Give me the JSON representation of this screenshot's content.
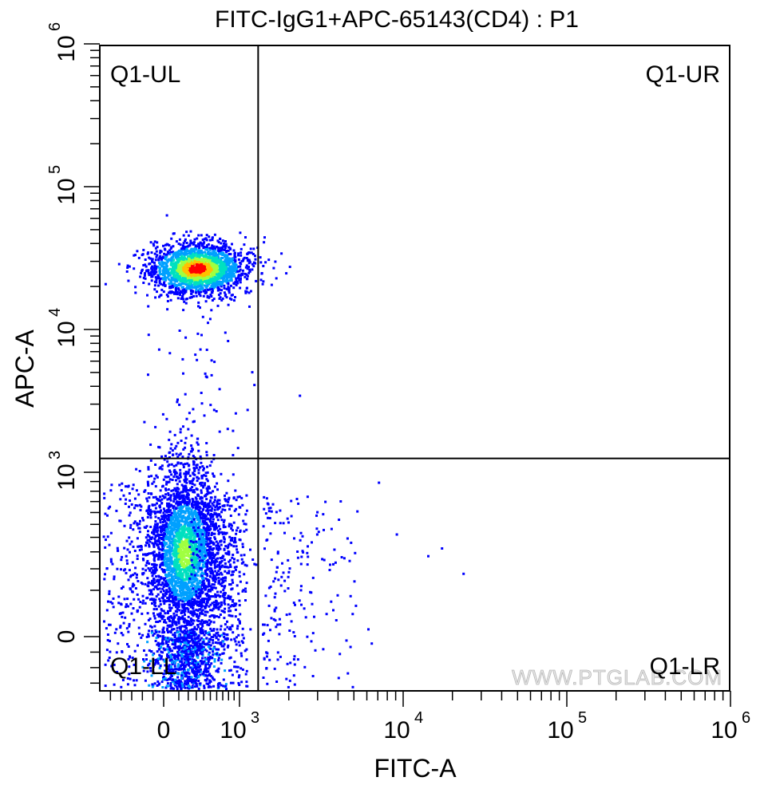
{
  "chart_data": {
    "type": "scatter",
    "title": "FITC-IgG1+APC-65143(CD4) : P1",
    "xlabel": "FITC-A",
    "ylabel": "APC-A",
    "x_scale": "biexponential",
    "y_scale": "biexponential",
    "xlim": [
      -600,
      1000000
    ],
    "ylim": [
      -350,
      1000000
    ],
    "x_ticks": [
      {
        "value": 0,
        "base": "0",
        "exp": ""
      },
      {
        "value": 1000,
        "base": "10",
        "exp": "3"
      },
      {
        "value": 10000,
        "base": "10",
        "exp": "4"
      },
      {
        "value": 100000,
        "base": "10",
        "exp": "5"
      },
      {
        "value": 1000000,
        "base": "10",
        "exp": "6"
      }
    ],
    "y_ticks": [
      {
        "value": 0,
        "base": "0",
        "exp": ""
      },
      {
        "value": 1000,
        "base": "10",
        "exp": "3"
      },
      {
        "value": 10000,
        "base": "10",
        "exp": "4"
      },
      {
        "value": 100000,
        "base": "10",
        "exp": "5"
      },
      {
        "value": 1000000,
        "base": "10",
        "exp": "6"
      }
    ],
    "gates": {
      "x": 1300,
      "y": 1250
    },
    "quadrants": [
      {
        "label": "Q1-UL",
        "position": "top-left"
      },
      {
        "label": "Q1-UR",
        "position": "top-right"
      },
      {
        "label": "Q1-LL",
        "position": "bottom-left"
      },
      {
        "label": "Q1-LR",
        "position": "bottom-right"
      }
    ],
    "populations": [
      {
        "quadrant": "Q1-UL",
        "center_x": 300,
        "center_y": 27000
      },
      {
        "quadrant": "Q1-LL",
        "center_x": 150,
        "center_y": 300
      }
    ],
    "outliers": [
      [
        1400,
        45000
      ],
      [
        2000,
        28000
      ],
      [
        2300,
        3500
      ],
      [
        7000,
        900
      ],
      [
        9000,
        430
      ],
      [
        17000,
        330
      ],
      [
        23000,
        180
      ],
      [
        14000,
        280
      ],
      [
        3000,
        450
      ],
      [
        4500,
        400
      ],
      [
        3500,
        200
      ],
      [
        5000,
        300
      ]
    ],
    "density_colors": [
      "#0000ff",
      "#00a0ff",
      "#00e0c0",
      "#a0ff40",
      "#ffc000",
      "#ff0000"
    ],
    "watermark": "WWW.PTGLAB.COM"
  }
}
